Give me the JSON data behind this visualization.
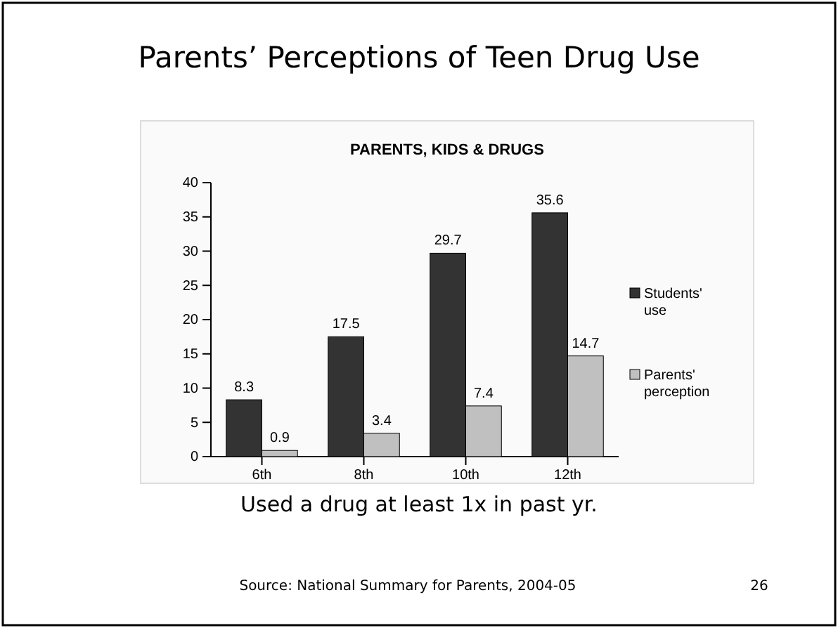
{
  "chart_data": {
    "type": "bar",
    "title": "Parents’ Perceptions of Teen Drug Use",
    "subtitle": "PARENTS, KIDS & DRUGS",
    "xlabel": "Used a drug at least 1x in past yr.",
    "categories": [
      "6th",
      "8th",
      "10th",
      "12th"
    ],
    "series": [
      {
        "name": "Students' use",
        "color": "#333333",
        "values": [
          8.3,
          17.5,
          29.7,
          35.6
        ]
      },
      {
        "name": "Parents' perception",
        "color": "#c0c0c0",
        "values": [
          0.9,
          3.4,
          7.4,
          14.7
        ]
      }
    ],
    "ylim": [
      0,
      40
    ],
    "yticks": [
      0,
      5,
      10,
      15,
      20,
      25,
      30,
      35,
      40
    ],
    "data_labels": true,
    "legend": "right",
    "grid": false,
    "annotations": [
      "Source: National Summary for Parents, 2004-05",
      "26"
    ]
  }
}
